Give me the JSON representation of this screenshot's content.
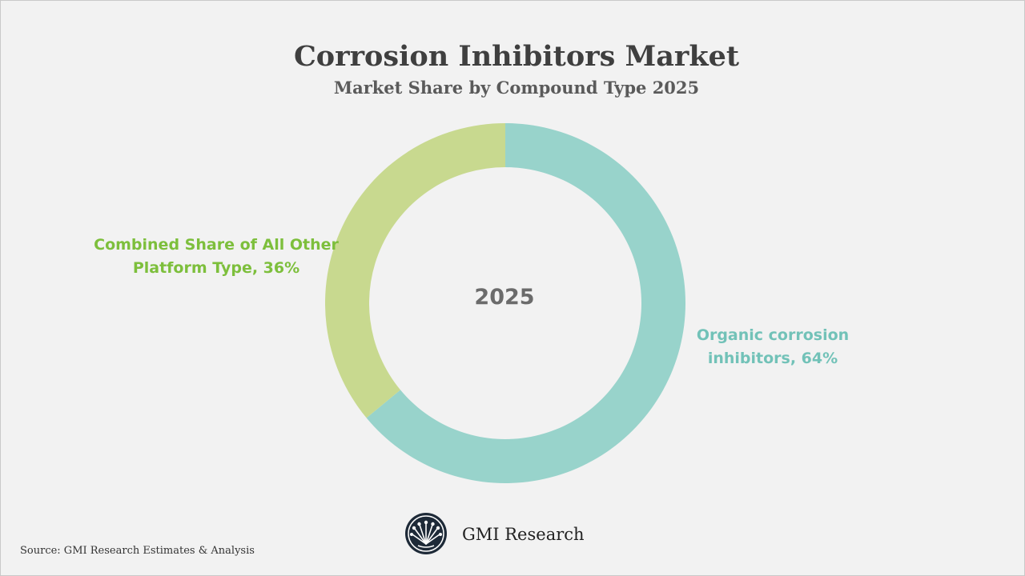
{
  "chart_data": {
    "type": "pie",
    "title": "Corrosion Inhibitors Market",
    "subtitle": "Market Share by Compound Type 2025",
    "center_label": "2025",
    "slices": [
      {
        "name": "Organic corrosion inhibitors",
        "value": 64,
        "color": "#98d3cb",
        "label_color": "#72c2b8",
        "label": "Organic corrosion inhibitors, 64%"
      },
      {
        "name": "Combined Share of All Other Platform Type",
        "value": 36,
        "color": "#c8d98f",
        "label_color": "#7dbf3c",
        "label": "Combined Share of All Other Platform Type, 36%"
      }
    ],
    "hole": "donut"
  },
  "branding": {
    "company": "GMI Research",
    "source": "Source: GMI Research Estimates & Analysis"
  }
}
